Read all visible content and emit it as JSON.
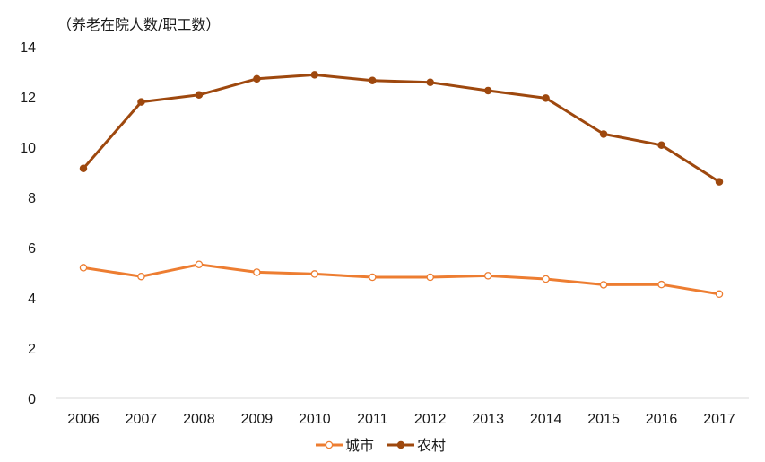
{
  "chart_data": {
    "type": "line",
    "title": "",
    "unit_label": "（养老在院人数/职工数）",
    "xlabel": "",
    "ylabel": "",
    "categories": [
      "2006",
      "2007",
      "2008",
      "2009",
      "2010",
      "2011",
      "2012",
      "2013",
      "2014",
      "2015",
      "2016",
      "2017"
    ],
    "ylim": [
      0,
      14
    ],
    "yticks": [
      0,
      2,
      4,
      6,
      8,
      10,
      12,
      14
    ],
    "grid": false,
    "legend_position": "bottom",
    "series": [
      {
        "name": "城市",
        "color": "#ED7D31",
        "marker": "hollow-circle",
        "values": [
          5.2,
          4.85,
          5.33,
          5.02,
          4.95,
          4.82,
          4.82,
          4.88,
          4.75,
          4.52,
          4.53,
          4.15
        ]
      },
      {
        "name": "农村",
        "color": "#9E480E",
        "marker": "filled-circle",
        "values": [
          9.15,
          11.8,
          12.08,
          12.72,
          12.88,
          12.65,
          12.58,
          12.25,
          11.95,
          10.52,
          10.08,
          8.62
        ]
      }
    ]
  }
}
